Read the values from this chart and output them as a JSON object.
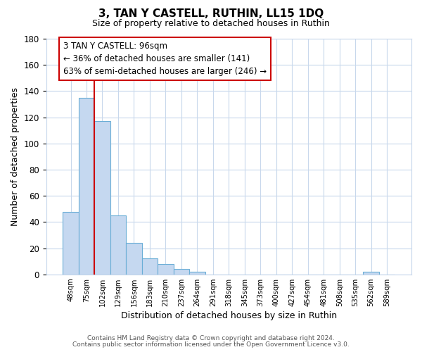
{
  "title": "3, TAN Y CASTELL, RUTHIN, LL15 1DQ",
  "subtitle": "Size of property relative to detached houses in Ruthin",
  "xlabel": "Distribution of detached houses by size in Ruthin",
  "ylabel": "Number of detached properties",
  "bar_labels": [
    "48sqm",
    "75sqm",
    "102sqm",
    "129sqm",
    "156sqm",
    "183sqm",
    "210sqm",
    "237sqm",
    "264sqm",
    "291sqm",
    "318sqm",
    "345sqm",
    "373sqm",
    "400sqm",
    "427sqm",
    "454sqm",
    "481sqm",
    "508sqm",
    "535sqm",
    "562sqm",
    "589sqm"
  ],
  "bar_heights": [
    48,
    135,
    117,
    45,
    24,
    12,
    8,
    4,
    2,
    0,
    0,
    0,
    0,
    0,
    0,
    0,
    0,
    0,
    0,
    2,
    0
  ],
  "bar_color": "#c5d8f0",
  "bar_edge_color": "#6aaed6",
  "ylim": [
    0,
    180
  ],
  "yticks": [
    0,
    20,
    40,
    60,
    80,
    100,
    120,
    140,
    160,
    180
  ],
  "property_line_color": "#cc0000",
  "annotation_text": "3 TAN Y CASTELL: 96sqm\n← 36% of detached houses are smaller (141)\n63% of semi-detached houses are larger (246) →",
  "footer_line1": "Contains HM Land Registry data © Crown copyright and database right 2024.",
  "footer_line2": "Contains public sector information licensed under the Open Government Licence v3.0.",
  "background_color": "#ffffff",
  "grid_color": "#c8d8ec"
}
